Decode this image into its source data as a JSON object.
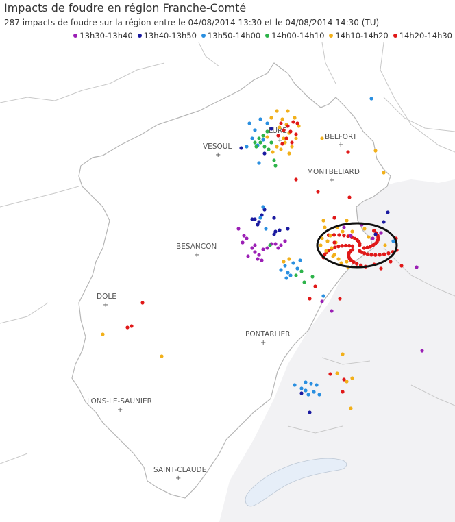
{
  "header": {
    "title": "Impacts de foudre en région Franche-Comté",
    "subtitle": "287 impacts de foudre sur la région entre le 04/08/2014 13:30 et le 04/08/2014 14:30 (TU)"
  },
  "legend": [
    {
      "label": "13h30-13h40",
      "color": "#9b1fb5"
    },
    {
      "label": "13h40-13h50",
      "color": "#1a1aa0"
    },
    {
      "label": "13h50-14h00",
      "color": "#2a8fe0"
    },
    {
      "label": "14h00-14h10",
      "color": "#2db34a"
    },
    {
      "label": "14h10-14h20",
      "color": "#f2b01a"
    },
    {
      "label": "14h20-14h30",
      "color": "#e01818"
    }
  ],
  "cities": [
    {
      "name": "VESOUL"
    },
    {
      "name": "LURE"
    },
    {
      "name": "BELFORT"
    },
    {
      "name": "MONTBELIARD"
    },
    {
      "name": "BESANCON"
    },
    {
      "name": "DOLE"
    },
    {
      "name": "PONTARLIER"
    },
    {
      "name": "LONS-LE-SAUNIER"
    },
    {
      "name": "SAINT-CLAUDE"
    }
  ]
}
